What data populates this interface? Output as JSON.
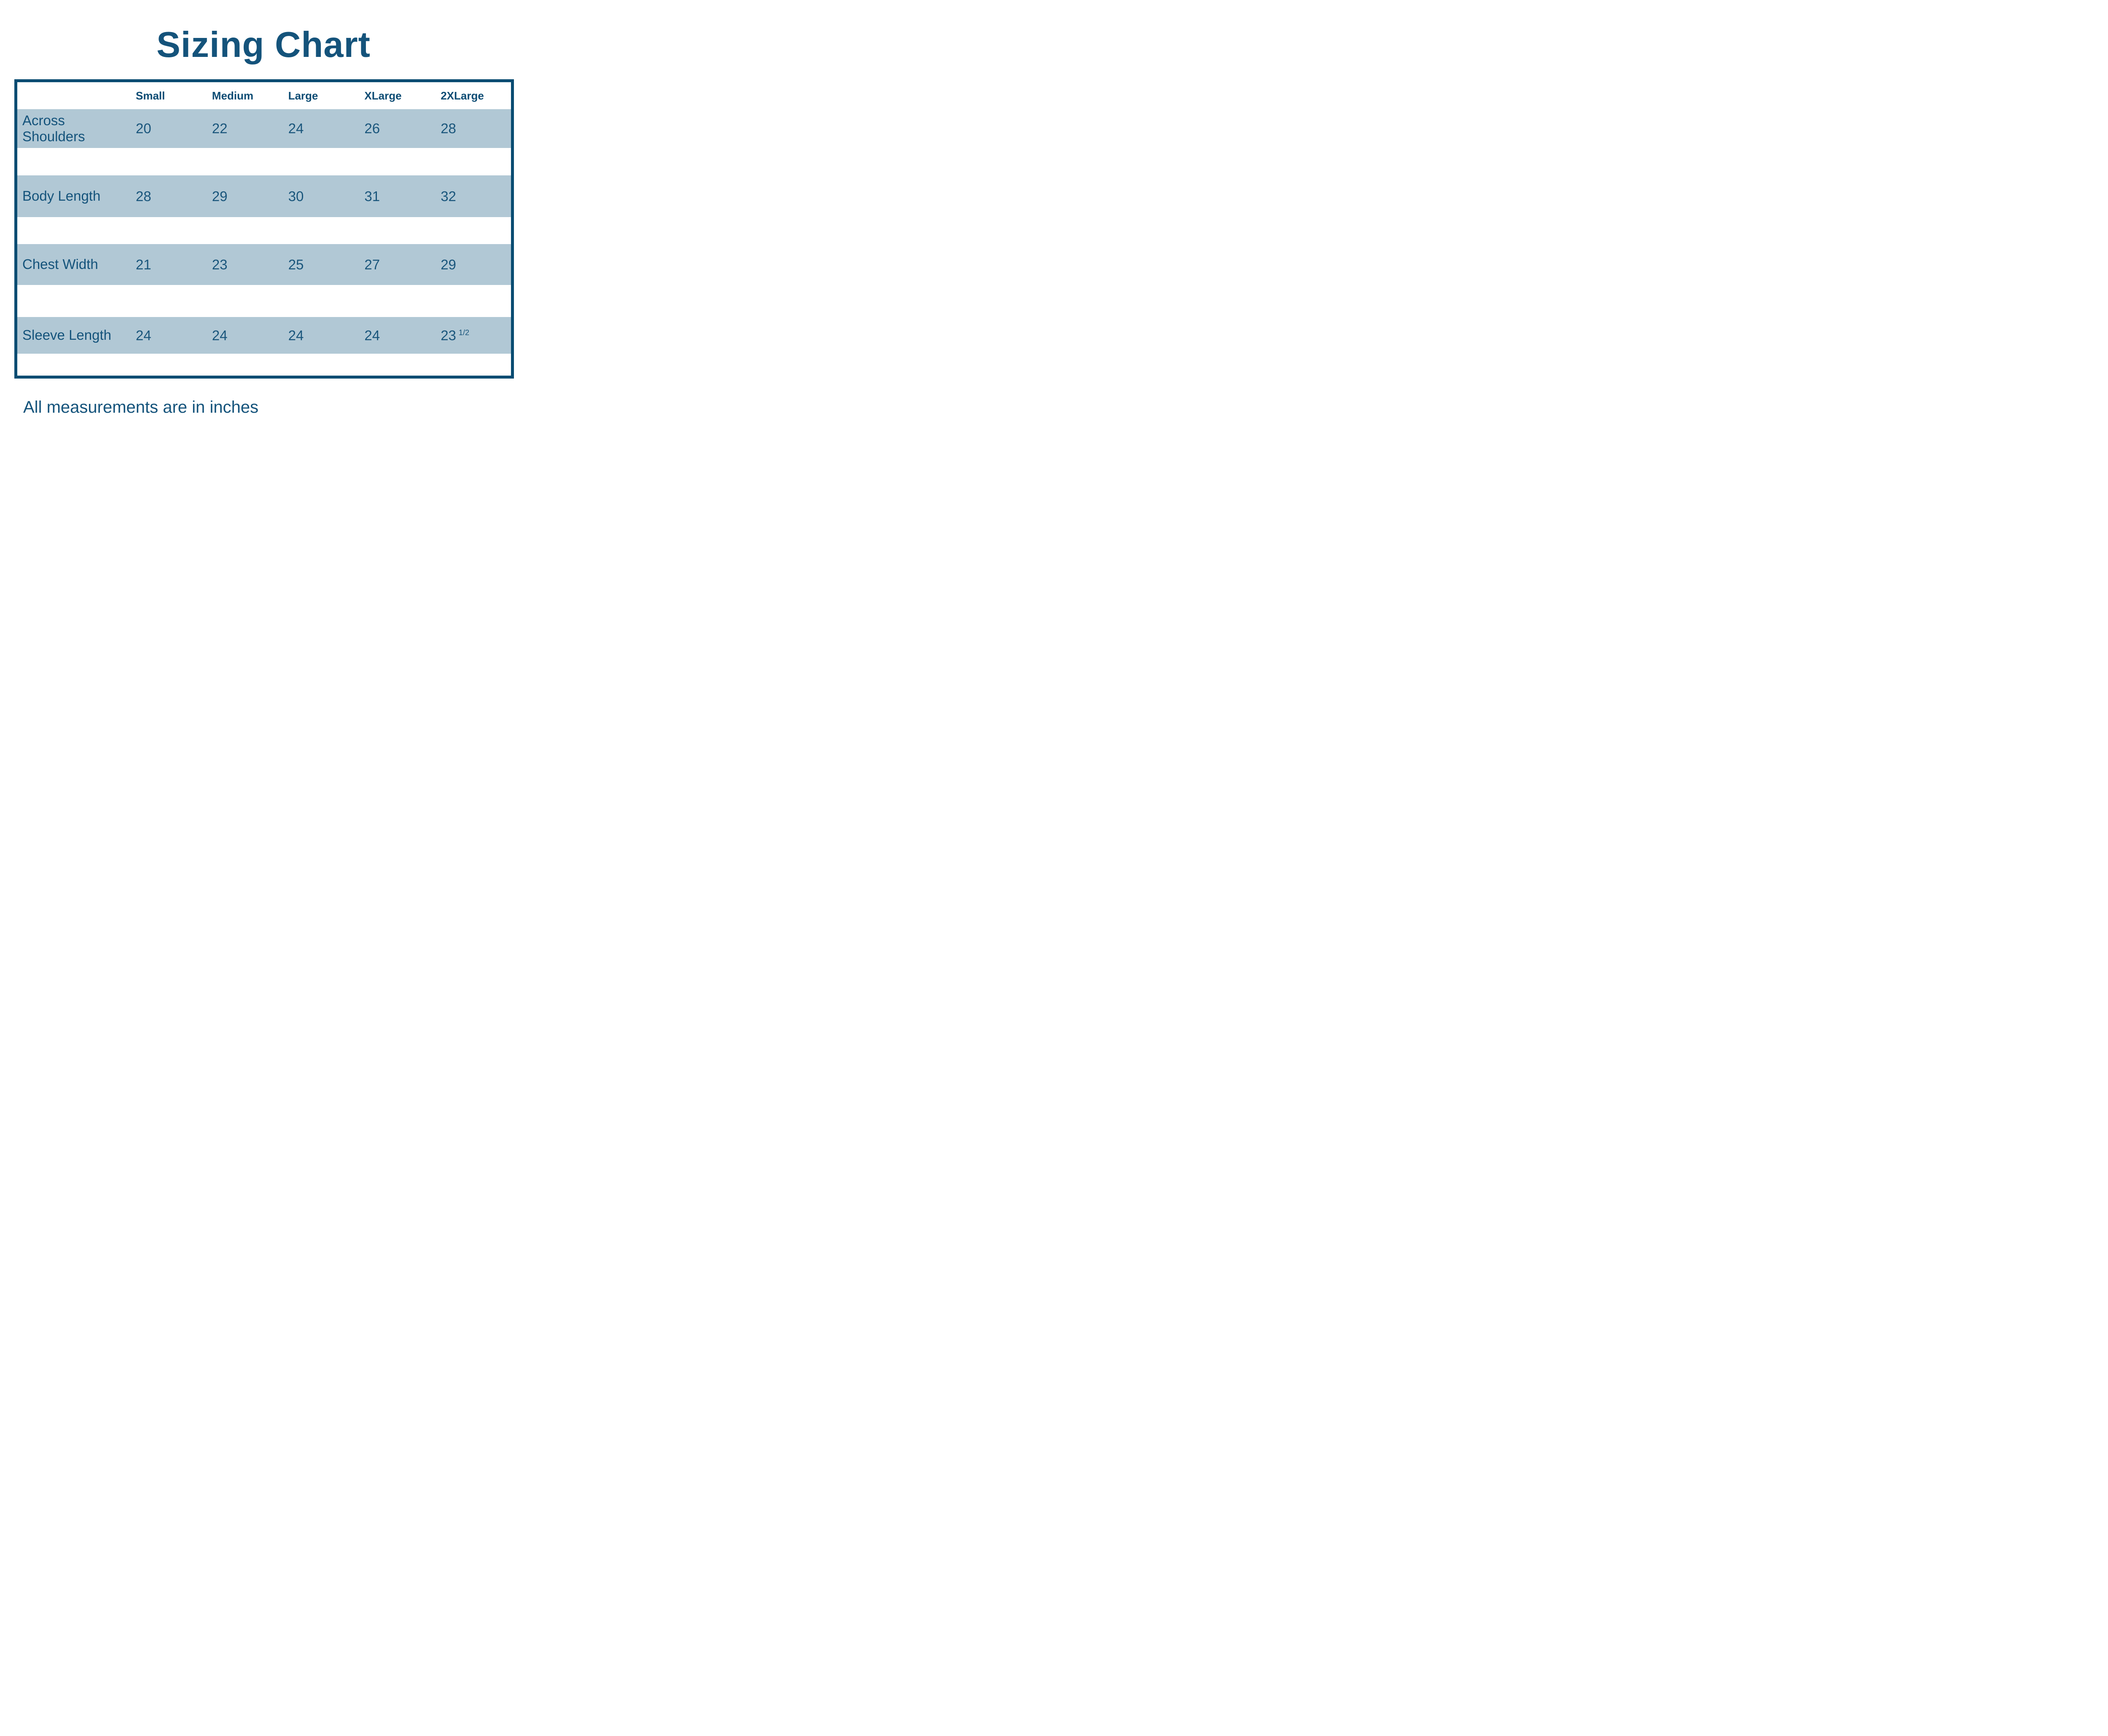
{
  "title": "Sizing Chart",
  "note": "All measurements are in inches",
  "colors": {
    "border_blue": "#094C72",
    "header_blue": "#0D4C74",
    "text_blue": "#14537B",
    "value_blue": "#1A567C",
    "band_blue": "#B1C8D5"
  },
  "table": {
    "columns": [
      "Small",
      "Medium",
      "Large",
      "XLarge",
      "2XLarge"
    ],
    "rows": [
      {
        "label": "Across Shoulders",
        "values": [
          "20",
          "22",
          "24",
          "26",
          "28"
        ]
      },
      {
        "label": "Body Length",
        "values": [
          "28",
          "29",
          "30",
          "31",
          "32"
        ]
      },
      {
        "label": "Chest Width",
        "values": [
          "21",
          "23",
          "25",
          "27",
          "29"
        ]
      },
      {
        "label": "Sleeve Length",
        "values": [
          "24",
          "24",
          "24",
          "24",
          "23"
        ],
        "last_value_fraction": "1/2"
      }
    ]
  },
  "chart_data": {
    "type": "table",
    "title": "Sizing Chart",
    "columns": [
      "Small",
      "Medium",
      "Large",
      "XLarge",
      "2XLarge"
    ],
    "row_labels": [
      "Across Shoulders",
      "Body Length",
      "Chest Width",
      "Sleeve Length"
    ],
    "values": [
      [
        20,
        22,
        24,
        26,
        28
      ],
      [
        28,
        29,
        30,
        31,
        32
      ],
      [
        21,
        23,
        25,
        27,
        29
      ],
      [
        24,
        24,
        24,
        24,
        23.5
      ]
    ],
    "note": "All measurements are in inches",
    "layout": "row labels in first column, alternating light-blue bands with white spacer rows, dark blue outer border"
  }
}
